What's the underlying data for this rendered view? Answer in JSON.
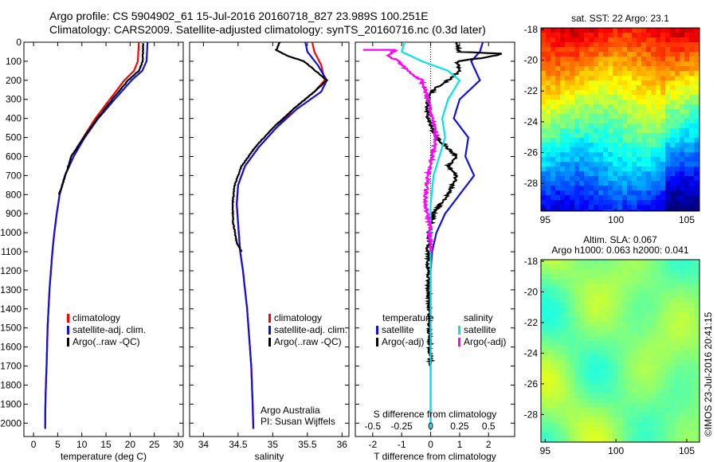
{
  "figure": {
    "title_line1": "Argo profile: CS 5904902_61 15-Jul-2016 20160718_827 23.989S 100.251E",
    "title_line2": "Climatology: CARS2009. Satellite-adjusted climatology: synTS_20160716.nc (0.3d later)",
    "credit_line1": "Argo Australia",
    "credit_line2": "PI: Susan Wijffels",
    "stamp": "©IMOS 23-Jul-2016 20:41:15"
  },
  "colors": {
    "climatology": "#ff0000",
    "satellite_adj": "#1010e0",
    "argo": "#000000",
    "satellite_diff_s": "#00e5e5",
    "argo_diff_s": "#ff00ff"
  },
  "chart_data": [
    {
      "type": "line",
      "id": "temperature",
      "xlabel": "temperature (deg C)",
      "ylabel": "",
      "xlim": [
        -2,
        31
      ],
      "ylim": [
        2070,
        0
      ],
      "xticks": [
        0,
        5,
        10,
        15,
        20,
        25,
        30
      ],
      "yticks": [
        0,
        100,
        200,
        300,
        400,
        500,
        600,
        700,
        800,
        900,
        1000,
        1100,
        1200,
        1300,
        1400,
        1500,
        1600,
        1700,
        1800,
        1900,
        2000
      ],
      "legend": [
        "climatology",
        "satellite-adj. clim.",
        "Argo(..raw -QC)"
      ],
      "legend_placement": "lower-left",
      "series": [
        {
          "name": "climatology",
          "color_key": "climatology",
          "x": [
            21.8,
            21.6,
            20.8,
            18.8,
            15.8,
            12.8,
            10.3,
            8.3,
            6.5,
            5.4,
            4.8,
            4.3,
            3.9,
            3.6,
            3.3,
            3.1,
            2.9,
            2.8,
            2.7,
            2.55,
            2.45,
            2.4
          ],
          "y": [
            0,
            100,
            150,
            200,
            300,
            400,
            500,
            600,
            700,
            800,
            900,
            1000,
            1100,
            1200,
            1300,
            1400,
            1500,
            1600,
            1700,
            1800,
            1900,
            2030
          ]
        },
        {
          "name": "satellite-adj. clim.",
          "color_key": "satellite_adj",
          "x": [
            23.6,
            23.4,
            22.5,
            20.3,
            16.8,
            13.4,
            10.6,
            8.3,
            6.5,
            5.4,
            4.8,
            4.3,
            3.9,
            3.6,
            3.3,
            3.1,
            2.9,
            2.8,
            2.7,
            2.55,
            2.45,
            2.4
          ],
          "y": [
            0,
            100,
            150,
            200,
            300,
            400,
            500,
            600,
            700,
            800,
            900,
            1000,
            1100,
            1200,
            1300,
            1400,
            1500,
            1600,
            1700,
            1800,
            1900,
            2030
          ]
        },
        {
          "name": "Argo(..raw -QC)",
          "color_key": "argo",
          "x": [
            22.7,
            22.6,
            21.8,
            19.6,
            16.3,
            13.2,
            10.4,
            7.8,
            6.6,
            5.3
          ],
          "y": [
            5,
            100,
            150,
            200,
            300,
            400,
            500,
            600,
            700,
            800
          ]
        }
      ]
    },
    {
      "type": "line",
      "id": "salinity",
      "xlabel": "salinity",
      "ylabel": "",
      "xlim": [
        33.8,
        36.1
      ],
      "ylim": [
        2070,
        0
      ],
      "xticks": [
        34,
        34.5,
        35,
        35.5,
        36
      ],
      "legend": [
        "climatology",
        "satellite-adj. clim.",
        "Argo(..raw -QC)"
      ],
      "legend_placement": "lower-left",
      "series": [
        {
          "name": "climatology",
          "color_key": "climatology",
          "x": [
            35.57,
            35.6,
            35.7,
            35.75,
            35.6,
            35.3,
            35.05,
            34.8,
            34.6,
            34.5,
            34.48,
            34.5,
            34.53,
            34.57,
            34.6,
            34.63,
            34.65,
            34.67,
            34.69,
            34.7,
            34.71,
            34.72
          ],
          "y": [
            0,
            50,
            120,
            200,
            260,
            350,
            450,
            550,
            650,
            750,
            850,
            950,
            1100,
            1200,
            1300,
            1400,
            1500,
            1600,
            1700,
            1800,
            1900,
            2030
          ]
        },
        {
          "name": "satellite-adj. clim.",
          "color_key": "satellite_adj",
          "x": [
            35.47,
            35.5,
            35.65,
            35.78,
            35.7,
            35.35,
            35.05,
            34.8,
            34.6,
            34.5,
            34.48,
            34.5,
            34.53,
            34.57,
            34.6,
            34.63,
            34.65,
            34.67,
            34.69,
            34.7,
            34.71,
            34.72
          ],
          "y": [
            0,
            50,
            120,
            200,
            260,
            350,
            450,
            550,
            650,
            750,
            850,
            950,
            1100,
            1200,
            1300,
            1400,
            1500,
            1600,
            1700,
            1800,
            1900,
            2030
          ]
        },
        {
          "name": "Argo(..raw -QC)",
          "color_key": "argo",
          "x": [
            35.1,
            35.05,
            35.2,
            35.45,
            35.55,
            35.65,
            35.78,
            35.6,
            35.3,
            35.0,
            34.75,
            34.55,
            34.45,
            34.42,
            34.43,
            34.48,
            34.55
          ],
          "y": [
            0,
            40,
            70,
            100,
            130,
            160,
            200,
            260,
            350,
            450,
            550,
            650,
            750,
            850,
            950,
            1050,
            1100
          ]
        }
      ]
    },
    {
      "type": "line",
      "id": "difference",
      "xlabel_bottom": "T difference from climatology",
      "xlabel_top": "S difference from climatology",
      "ylabel": "",
      "xlim": [
        -2.6,
        2.9
      ],
      "ylim": [
        2070,
        0
      ],
      "xticks": [
        -2,
        -1,
        0,
        1,
        2
      ],
      "xticks_s": [
        -0.5,
        -0.25,
        0,
        0.25,
        0.5
      ],
      "legend": [
        "temperature",
        "satellite",
        "Argo(-adj)",
        "salinity",
        "satellite",
        "Argo(-adj)"
      ],
      "legend_placement": "lower-center",
      "series": [
        {
          "name": "T satellite",
          "color_key": "satellite_adj",
          "x": [
            1.8,
            1.7,
            1.4,
            1.7,
            1.0,
            0.8,
            1.3,
            1.2,
            1.5,
            1.0,
            0.5,
            0.2,
            0.05,
            0,
            0,
            0
          ],
          "y": [
            0,
            50,
            100,
            200,
            300,
            400,
            500,
            600,
            700,
            800,
            900,
            1000,
            1100,
            1200,
            1500,
            2030
          ]
        },
        {
          "name": "T Argo(-adj)",
          "color_key": "argo",
          "x": [
            0.9,
            1.0,
            2.5,
            1.9,
            0.9,
            1.0,
            0.6,
            0.1,
            -0.1,
            -0.1,
            0.2,
            0.9,
            0.6,
            0.9,
            0.6,
            0.1,
            -0.05,
            -0.1,
            -0.05,
            0
          ],
          "y": [
            0,
            50,
            60,
            80,
            100,
            150,
            200,
            250,
            300,
            400,
            500,
            600,
            650,
            700,
            800,
            900,
            1000,
            1100,
            1500,
            1700
          ]
        },
        {
          "name": "S satellite",
          "color_key": "satellite_diff_s",
          "x": [
            -0.9,
            -1.0,
            -0.3,
            0.6,
            1.0,
            0.6,
            0.4,
            0.5,
            0.3,
            0.1,
            0,
            0,
            0
          ],
          "y": [
            0,
            50,
            100,
            150,
            200,
            300,
            400,
            500,
            600,
            700,
            850,
            1000,
            2030
          ]
        },
        {
          "name": "S Argo(-adj)",
          "color_key": "argo_diff_s",
          "x": [
            -2.3,
            -1.2,
            -1.5,
            -1.1,
            -0.8,
            -0.3,
            -0.2,
            -0.1,
            0.2,
            0.05,
            -0.1,
            -0.2,
            -0.05,
            0
          ],
          "y": [
            40,
            40,
            70,
            100,
            150,
            200,
            250,
            300,
            500,
            600,
            700,
            850,
            950,
            1100
          ]
        }
      ]
    },
    {
      "type": "heatmap",
      "id": "sst_map",
      "title": "sat. SST: 22 Argo: 23.1",
      "xlim": [
        94.7,
        105.9
      ],
      "ylim": [
        -29.8,
        -17.9
      ],
      "xticks": [
        95,
        100,
        105
      ],
      "yticks": [
        -18,
        -20,
        -22,
        -24,
        -26,
        -28
      ],
      "colormap": "jet"
    },
    {
      "type": "heatmap",
      "id": "sla_map",
      "title_line1": "Altim. SLA: 0.067",
      "title_line2": "Argo h1000: 0.063 h2000: 0.041",
      "xlim": [
        94.7,
        105.9
      ],
      "ylim": [
        -29.8,
        -17.9
      ],
      "xticks": [
        95,
        100,
        105
      ],
      "yticks": [
        -18,
        -20,
        -22,
        -24,
        -26,
        -28
      ],
      "colormap": "jet-narrow"
    }
  ]
}
